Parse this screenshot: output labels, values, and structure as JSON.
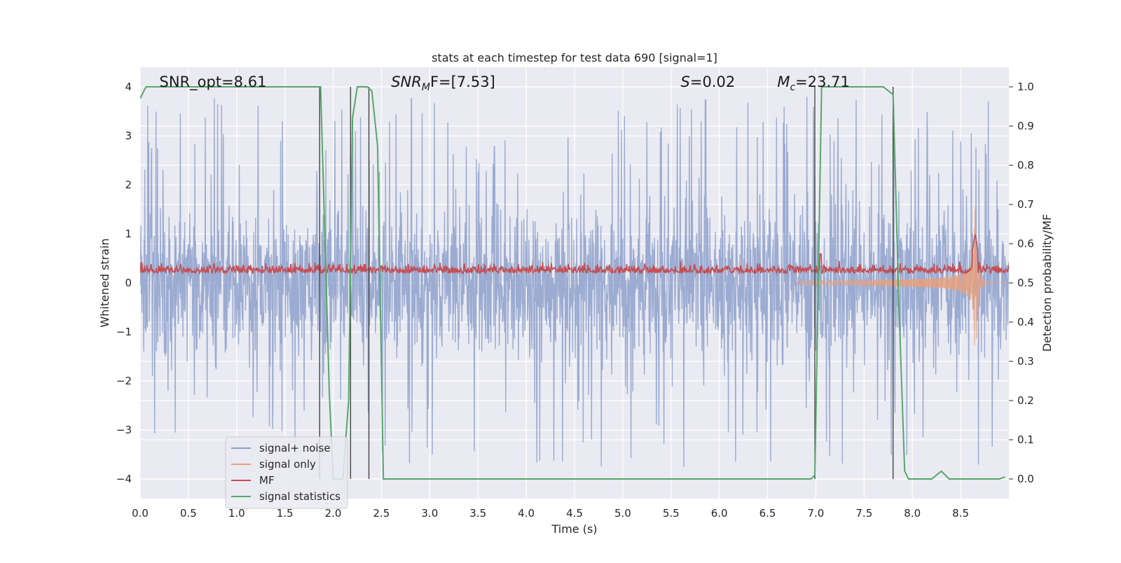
{
  "chart_data": {
    "type": "line",
    "title": "stats at each timestep for test data 690 [signal=1]",
    "xlabel": "Time (s)",
    "ylabel": "Whitened strain",
    "ylabel_right": "Detection probability/MF",
    "xlim": [
      0.0,
      9.0
    ],
    "ylim": [
      -4.4,
      4.4
    ],
    "ylim_right": [
      -0.05,
      1.05
    ],
    "grid": true,
    "legend_position": "lower-left",
    "x_ticks": [
      0.0,
      0.5,
      1.0,
      1.5,
      2.0,
      2.5,
      3.0,
      3.5,
      4.0,
      4.5,
      5.0,
      5.5,
      6.0,
      6.5,
      7.0,
      7.5,
      8.0,
      8.5
    ],
    "x_tick_labels": [
      "0.0",
      "0.5",
      "1.0",
      "1.5",
      "2.0",
      "2.5",
      "3.0",
      "3.5",
      "4.0",
      "4.5",
      "5.0",
      "5.5",
      "6.0",
      "6.5",
      "7.0",
      "7.5",
      "8.0",
      "8.5"
    ],
    "y_ticks": [
      -4,
      -3,
      -2,
      -1,
      0,
      1,
      2,
      3,
      4
    ],
    "y_tick_labels": [
      "−4",
      "−3",
      "−2",
      "−1",
      "0",
      "1",
      "2",
      "3",
      "4"
    ],
    "y_right_ticks": [
      0.0,
      0.1,
      0.2,
      0.3,
      0.4,
      0.5,
      0.6,
      0.7,
      0.8,
      0.9,
      1.0
    ],
    "y_right_tick_labels": [
      "0.0",
      "0.1",
      "0.2",
      "0.3",
      "0.4",
      "0.5",
      "0.6",
      "0.7",
      "0.8",
      "0.9",
      "1.0"
    ],
    "annotations": {
      "snr_opt": "SNR_opt=8.61",
      "snr_mf_main": "SNR",
      "snr_mf_sub": "M",
      "snr_mf_tail": "F=[7.53]",
      "s_main": "S",
      "s_tail": "=0.02",
      "mc_main": "M",
      "mc_sub": "c",
      "mc_tail": "=23.71"
    },
    "annotation_x": {
      "snr_opt": 0.2,
      "snr_mf": 2.6,
      "s": 5.6,
      "mc": 6.6
    },
    "vertical_lines_x": [
      1.86,
      2.18,
      2.37,
      6.99,
      7.8
    ],
    "series": [
      {
        "name": "signal+ noise",
        "color": "#8da0cb"
      },
      {
        "name": "signal only",
        "color": "#e8a07c"
      },
      {
        "name": "MF",
        "color": "#c44e52"
      },
      {
        "name": "signal statistics",
        "color": "#55a868"
      }
    ],
    "noise_envelope": {
      "sigma": 0.8,
      "peak_max": 3.8,
      "trough_min": -4.0
    },
    "signal_only": {
      "t_merge": 8.65,
      "peak_amplitude": 1.9,
      "onset": 6.8
    },
    "mf_baseline": {
      "mean": 0.2,
      "spread": 0.15,
      "spike_at": 8.65,
      "spike_value": 1.0
    },
    "signal_statistics": {
      "x": [
        0.0,
        0.06,
        1.8,
        1.87,
        1.96,
        2.0,
        2.1,
        2.16,
        2.2,
        2.25,
        2.3,
        2.35,
        2.4,
        2.46,
        2.52,
        2.58,
        6.95,
        6.99,
        7.06,
        7.7,
        7.8,
        7.86,
        7.92,
        7.96,
        8.05,
        8.2,
        8.3,
        8.38,
        8.5,
        8.9,
        8.96
      ],
      "y": [
        0.97,
        1.0,
        1.0,
        1.0,
        0.22,
        0.0,
        0.0,
        0.2,
        0.92,
        1.0,
        1.0,
        1.0,
        0.99,
        0.85,
        0.0,
        0.0,
        0.0,
        0.01,
        1.0,
        1.0,
        0.98,
        0.45,
        0.02,
        0.0,
        0.0,
        0.0,
        0.02,
        0.0,
        0.0,
        0.0,
        0.005
      ]
    }
  }
}
